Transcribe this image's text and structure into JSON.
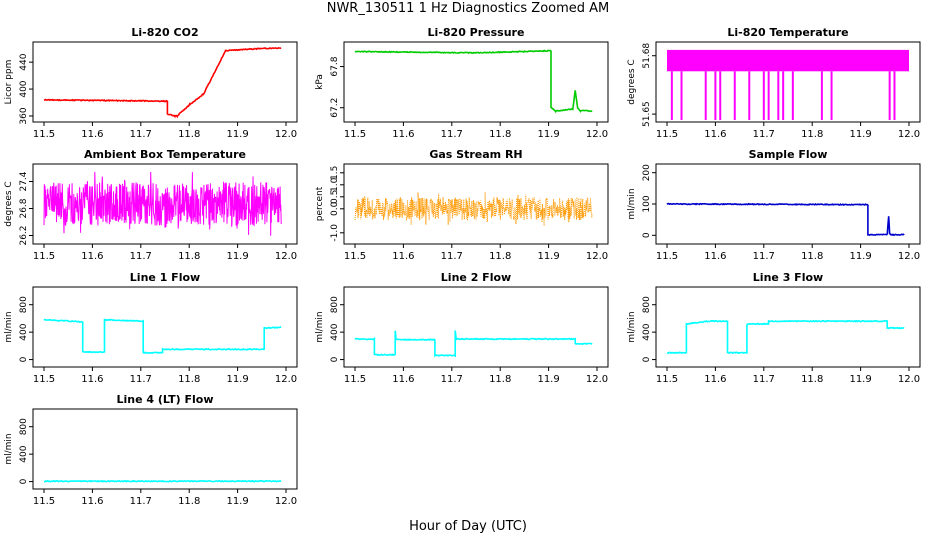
{
  "figure": {
    "title": "NWR_130511  1 Hz Diagnostics Zoomed AM",
    "xlabel": "Hour of Day (UTC)"
  },
  "chart_data": [
    {
      "type": "line",
      "title": "Li-820 CO2",
      "ylabel": "Licor ppm",
      "color": "#ff0000",
      "xlim": [
        11.5,
        12.0
      ],
      "ylim": [
        357,
        464
      ],
      "xticks": [
        "11.5",
        "11.6",
        "11.7",
        "11.8",
        "11.9",
        "12.0"
      ],
      "yticks": [
        "360",
        "400",
        "440"
      ],
      "x": [
        11.5,
        11.755,
        11.755,
        11.77,
        11.775,
        11.8,
        11.8,
        11.83,
        11.83,
        11.875,
        11.875,
        11.94,
        11.99
      ],
      "y": [
        384,
        382,
        363,
        360,
        360,
        376,
        376,
        393,
        393,
        457,
        457,
        460,
        461
      ]
    },
    {
      "type": "line",
      "title": "Li-820 Pressure",
      "ylabel": "kPa",
      "color": "#00cc00",
      "xlim": [
        11.5,
        12.0
      ],
      "ylim": [
        67.05,
        68.1
      ],
      "xticks": [
        "11.5",
        "11.6",
        "11.7",
        "11.8",
        "11.9",
        "12.0"
      ],
      "yticks": [
        "67.2",
        "67.8"
      ],
      "x": [
        11.5,
        11.75,
        11.905,
        11.905,
        11.915,
        11.95,
        11.955,
        11.96,
        11.965,
        11.99
      ],
      "y": [
        68.02,
        68.0,
        68.03,
        67.2,
        67.15,
        67.18,
        67.45,
        67.2,
        67.16,
        67.15
      ]
    },
    {
      "type": "line",
      "title": "Li-820 Temperature",
      "ylabel": "degrees C",
      "color": "#ff00ff",
      "xlim": [
        11.5,
        12.0
      ],
      "ylim": [
        51.648,
        51.685
      ],
      "xticks": [
        "11.5",
        "11.6",
        "11.7",
        "11.8",
        "11.9",
        "12.0"
      ],
      "yticks": [
        "51.65",
        "51.68"
      ],
      "x": [
        11.5,
        12.0
      ],
      "y": [
        51.68,
        51.68
      ],
      "band": [
        51.672,
        51.683
      ],
      "dropouts": [
        11.51,
        11.53,
        11.58,
        11.6,
        11.61,
        11.64,
        11.67,
        11.7,
        11.71,
        11.73,
        11.74,
        11.76,
        11.82,
        11.84,
        11.96,
        11.97
      ]
    },
    {
      "type": "line",
      "title": "Ambient Box Temperature",
      "ylabel": "degrees C",
      "color": "#ff00ff",
      "xlim": [
        11.5,
        12.0
      ],
      "ylim": [
        26.1,
        27.7
      ],
      "xticks": [
        "11.5",
        "11.6",
        "11.7",
        "11.8",
        "11.9",
        "12.0"
      ],
      "yticks": [
        "26.2",
        "26.8",
        "27.4"
      ],
      "x": [
        11.5,
        11.99
      ],
      "y": [
        26.9,
        26.9
      ],
      "noise_range": [
        26.3,
        27.5
      ]
    },
    {
      "type": "scatter",
      "title": "Gas Stream RH",
      "ylabel": "percent",
      "color": "#ff9900",
      "xlim": [
        11.5,
        12.0
      ],
      "ylim": [
        -1.3,
        1.7
      ],
      "xticks": [
        "11.5",
        "11.6",
        "11.7",
        "11.8",
        "11.9",
        "12.0"
      ],
      "yticks": [
        "-1.0",
        "0.0",
        "0.5",
        "1.0",
        "1.5"
      ],
      "x": [
        11.5,
        11.99
      ],
      "y": [
        0.1,
        0.1
      ],
      "noise_range": [
        -0.6,
        0.6
      ]
    },
    {
      "type": "line",
      "title": "Sample Flow",
      "ylabel": "ml/min",
      "color": "#0000cc",
      "xlim": [
        11.5,
        12.0
      ],
      "ylim": [
        -15,
        215
      ],
      "xticks": [
        "11.5",
        "11.6",
        "11.7",
        "11.8",
        "11.9",
        "12.0"
      ],
      "yticks": [
        "0",
        "100",
        "200"
      ],
      "x": [
        11.5,
        11.915,
        11.915,
        11.955,
        11.958,
        11.96,
        11.962,
        11.99
      ],
      "y": [
        100,
        98,
        2,
        2,
        60,
        5,
        2,
        2
      ]
    },
    {
      "type": "line",
      "title": "Line 1 Flow",
      "ylabel": "ml/min",
      "color": "#00ffff",
      "xlim": [
        11.5,
        12.0
      ],
      "ylim": [
        -50,
        1000
      ],
      "xticks": [
        "11.5",
        "11.6",
        "11.7",
        "11.8",
        "11.9",
        "12.0"
      ],
      "yticks": [
        "0",
        "400",
        "800"
      ],
      "x": [
        11.5,
        11.58,
        11.58,
        11.625,
        11.625,
        11.705,
        11.705,
        11.745,
        11.745,
        11.955,
        11.955,
        11.99
      ],
      "y": [
        580,
        550,
        110,
        110,
        580,
        560,
        100,
        100,
        150,
        150,
        460,
        470
      ]
    },
    {
      "type": "line",
      "title": "Line 2 Flow",
      "ylabel": "ml/min",
      "color": "#00ffff",
      "xlim": [
        11.5,
        12.0
      ],
      "ylim": [
        -50,
        1000
      ],
      "xticks": [
        "11.5",
        "11.6",
        "11.7",
        "11.8",
        "11.9",
        "12.0"
      ],
      "yticks": [
        "0",
        "400",
        "800"
      ],
      "x": [
        11.5,
        11.54,
        11.54,
        11.583,
        11.583,
        11.585,
        11.665,
        11.665,
        11.707,
        11.707,
        11.709,
        11.955,
        11.955,
        11.99
      ],
      "y": [
        300,
        300,
        70,
        70,
        420,
        290,
        290,
        60,
        60,
        420,
        300,
        300,
        230,
        230
      ]
    },
    {
      "type": "line",
      "title": "Line 3 Flow",
      "ylabel": "ml/min",
      "color": "#00ffff",
      "xlim": [
        11.5,
        12.0
      ],
      "ylim": [
        -50,
        1000
      ],
      "xticks": [
        "11.5",
        "11.6",
        "11.7",
        "11.8",
        "11.9",
        "12.0"
      ],
      "yticks": [
        "0",
        "400",
        "800"
      ],
      "x": [
        11.5,
        11.54,
        11.54,
        11.585,
        11.585,
        11.625,
        11.625,
        11.665,
        11.665,
        11.71,
        11.71,
        11.955,
        11.955,
        11.99
      ],
      "y": [
        100,
        100,
        520,
        560,
        560,
        560,
        100,
        100,
        520,
        520,
        560,
        560,
        460,
        460
      ]
    },
    {
      "type": "line",
      "title": "Line 4 (LT) Flow",
      "ylabel": "ml/min",
      "color": "#00ffff",
      "xlim": [
        11.5,
        12.0
      ],
      "ylim": [
        -50,
        1000
      ],
      "xticks": [
        "11.5",
        "11.6",
        "11.7",
        "11.8",
        "11.9",
        "12.0"
      ],
      "yticks": [
        "0",
        "400",
        "800"
      ],
      "x": [
        11.5,
        11.99
      ],
      "y": [
        5,
        5
      ]
    }
  ]
}
